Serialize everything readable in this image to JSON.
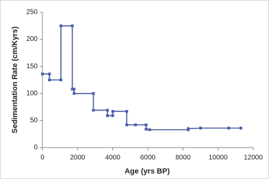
{
  "chart_data": {
    "type": "line",
    "x_label": "Age (yrs BP)",
    "y_label": "Sedimentation Rate (cm/Kyrs)",
    "x": [
      0,
      400,
      400,
      1050,
      1050,
      1700,
      1700,
      1800,
      1800,
      2900,
      2900,
      3700,
      3700,
      4000,
      4000,
      4800,
      4800,
      5300,
      5900,
      5900,
      6100,
      8300,
      8300,
      9000,
      10600,
      11300
    ],
    "values": [
      136,
      136,
      125,
      125,
      225,
      225,
      108,
      108,
      100,
      100,
      69,
      69,
      59,
      59,
      67,
      67,
      42,
      42,
      42,
      34,
      33,
      33,
      35,
      36,
      36,
      36
    ],
    "color": "#4a5ea8",
    "xlim": [
      0,
      12000
    ],
    "xticks": [
      0,
      2000,
      4000,
      6000,
      8000,
      10000,
      12000
    ],
    "ylim": [
      0,
      250
    ],
    "yticks": [
      0,
      50,
      100,
      150,
      200,
      250
    ]
  }
}
